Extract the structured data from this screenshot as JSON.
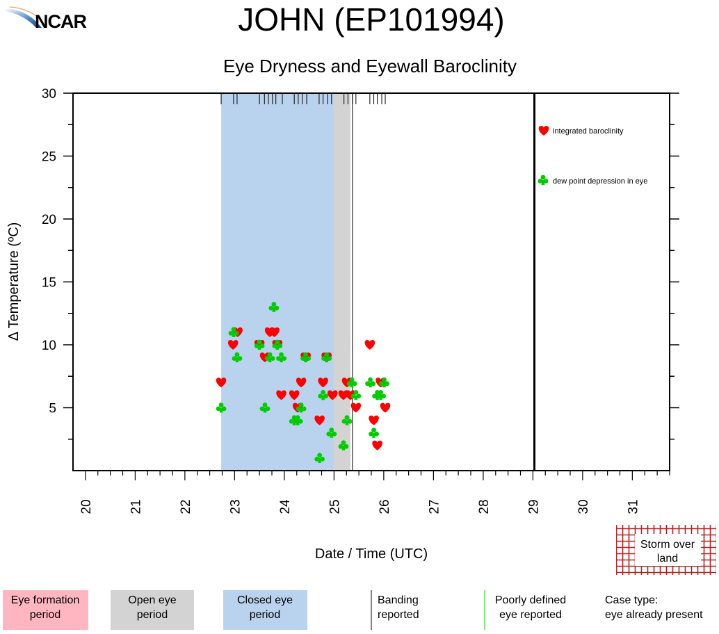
{
  "header": {
    "logo_text": "NCAR",
    "title": "JOHN (EP101994)",
    "subtitle": "Eye Dryness and Eyewall Baroclinity"
  },
  "chart_data": {
    "type": "scatter",
    "title": "JOHN (EP101994)",
    "subtitle": "Eye Dryness and Eyewall Baroclinity",
    "xlabel": "Date / Time (UTC)",
    "ylabel": "Δ Temperature (ºC)",
    "xlim": [
      19.75,
      31.75
    ],
    "ylim": [
      0,
      30
    ],
    "x_ticks": [
      "20",
      "21",
      "22",
      "23",
      "24",
      "25",
      "26",
      "27",
      "28",
      "29",
      "30",
      "31"
    ],
    "y_ticks": [
      "5",
      "10",
      "15",
      "20",
      "25",
      "30"
    ],
    "grid": false,
    "legend_placement": "top-right",
    "series": [
      {
        "name": "integrated baroclinity",
        "marker": "heart",
        "color": "#ff0000",
        "points": [
          [
            22.73,
            7
          ],
          [
            23.06,
            11
          ],
          [
            22.97,
            10
          ],
          [
            23.5,
            10
          ],
          [
            23.61,
            9
          ],
          [
            23.71,
            11
          ],
          [
            23.8,
            11
          ],
          [
            23.86,
            10
          ],
          [
            23.94,
            6
          ],
          [
            24.2,
            6
          ],
          [
            24.27,
            5
          ],
          [
            24.34,
            7
          ],
          [
            24.43,
            9
          ],
          [
            24.71,
            4
          ],
          [
            24.78,
            7
          ],
          [
            24.85,
            9
          ],
          [
            24.97,
            6
          ],
          [
            25.19,
            6
          ],
          [
            25.26,
            7
          ],
          [
            25.33,
            6
          ],
          [
            25.44,
            5
          ],
          [
            25.72,
            10
          ],
          [
            25.8,
            4
          ],
          [
            25.87,
            2
          ],
          [
            25.94,
            7
          ],
          [
            26.03,
            5
          ]
        ]
      },
      {
        "name": "dew point depression in eye",
        "marker": "club",
        "color": "#00cc00",
        "points": [
          [
            22.73,
            5
          ],
          [
            22.98,
            11
          ],
          [
            23.05,
            9
          ],
          [
            23.5,
            10
          ],
          [
            23.61,
            5
          ],
          [
            23.71,
            9
          ],
          [
            23.79,
            13
          ],
          [
            23.86,
            10
          ],
          [
            23.94,
            9
          ],
          [
            24.2,
            4
          ],
          [
            24.27,
            4
          ],
          [
            24.34,
            5
          ],
          [
            24.43,
            9
          ],
          [
            24.71,
            1
          ],
          [
            24.78,
            6
          ],
          [
            24.85,
            9
          ],
          [
            24.95,
            3
          ],
          [
            25.19,
            2
          ],
          [
            25.26,
            4
          ],
          [
            25.36,
            7
          ],
          [
            25.44,
            6
          ],
          [
            25.73,
            7
          ],
          [
            25.8,
            3
          ],
          [
            25.87,
            6
          ],
          [
            25.94,
            6
          ],
          [
            26.01,
            7
          ]
        ]
      }
    ],
    "periods": [
      {
        "type": "closed eye",
        "start": 22.73,
        "end": 25.0,
        "color": "#b9d3ee"
      },
      {
        "type": "open eye",
        "start": 25.0,
        "end": 25.33,
        "color": "#d3d3d3"
      }
    ],
    "banding_reported": [
      25.37
    ],
    "storm_end_line": 29.03,
    "observation_times": [
      22.73,
      22.98,
      23.05,
      23.5,
      23.6,
      23.68,
      23.76,
      23.83,
      23.96,
      24.2,
      24.28,
      24.36,
      24.45,
      24.7,
      24.78,
      24.87,
      24.95,
      25.2,
      25.28,
      25.37,
      25.44,
      25.72,
      25.8,
      25.87,
      25.96,
      26.03
    ]
  },
  "legend": {
    "eye_formation": {
      "label": "Eye formation period",
      "color": "#ffb6c1"
    },
    "open_eye": {
      "label": "Open eye period",
      "color": "#d3d3d3"
    },
    "closed_eye": {
      "label": "Closed eye period",
      "color": "#b9d3ee"
    },
    "banding": {
      "label": "Banding reported"
    },
    "poorly_defined": {
      "label": "Poorly defined eye reported",
      "color": "#00cc00"
    },
    "case_type": {
      "label": "Case type:",
      "value": "eye already present"
    },
    "storm_over_land": {
      "label": "Storm over land",
      "color": "#b22222"
    }
  }
}
